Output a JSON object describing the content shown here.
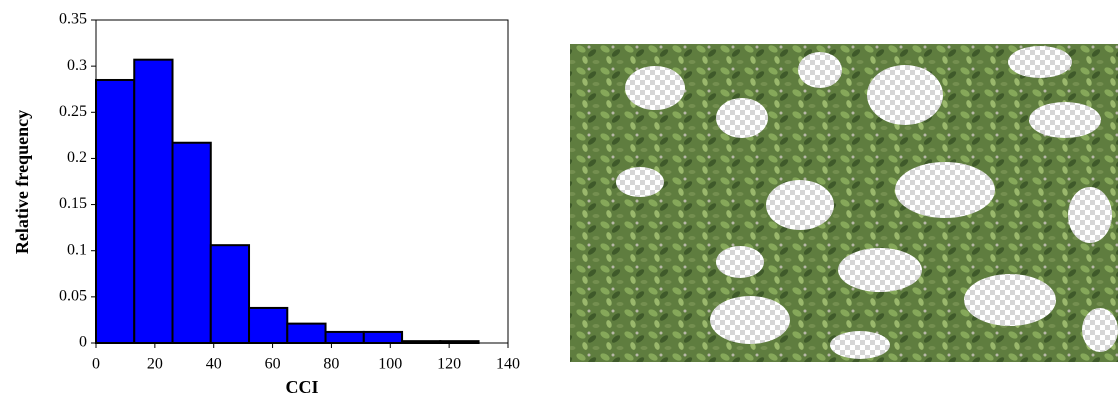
{
  "chart_data": {
    "type": "histogram",
    "xlabel": "CCI",
    "ylabel": "Relative frequency",
    "bins": [
      0,
      13,
      26,
      39,
      52,
      65,
      78,
      91,
      104,
      117,
      130
    ],
    "values": [
      0.285,
      0.307,
      0.217,
      0.106,
      0.038,
      0.021,
      0.012,
      0.012,
      0.002,
      0.002
    ],
    "color": "#0000ff",
    "xlim": [
      0,
      140
    ],
    "xticks": [
      0,
      20,
      40,
      60,
      80,
      100,
      120,
      140
    ],
    "ylim": [
      0,
      0.35
    ],
    "yticks": [
      0,
      0.05,
      0.1,
      0.15,
      0.2,
      0.25,
      0.3,
      0.35
    ]
  }
}
